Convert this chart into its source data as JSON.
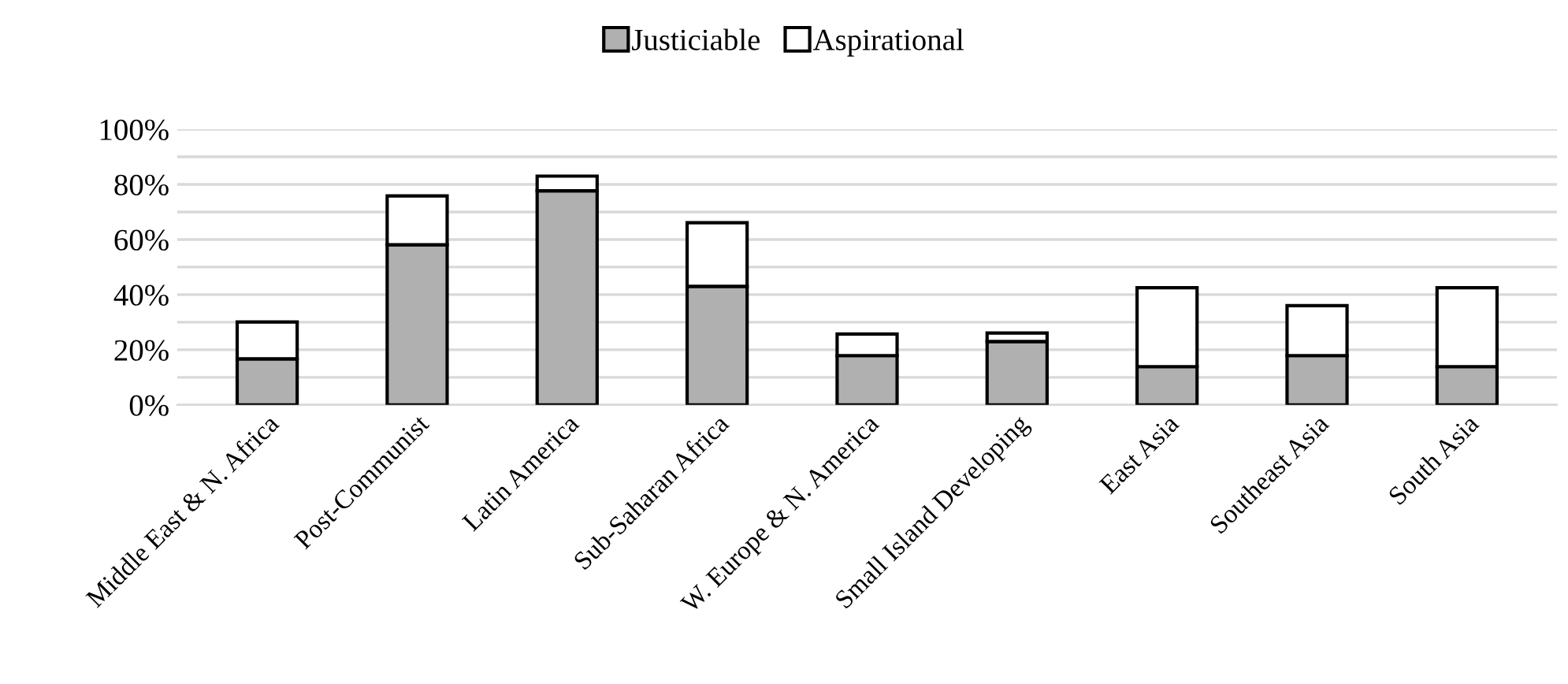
{
  "chart_data": {
    "type": "bar",
    "stacked": true,
    "categories": [
      "Middle East & N. Africa",
      "Post-Communist",
      "Latin America",
      "Sub-Saharan Africa",
      "W. Europe & N. America",
      "Small Island Developing",
      "East Asia",
      "Southeast Asia",
      "South Asia"
    ],
    "series": [
      {
        "name": "Justiciable",
        "color": "#b0b0b0",
        "values": [
          16.7,
          58.1,
          77.7,
          43.0,
          17.9,
          23.0,
          13.9,
          17.9,
          13.9
        ]
      },
      {
        "name": "Aspirational",
        "color": "#ffffff",
        "values": [
          13.4,
          17.7,
          5.3,
          23.1,
          7.8,
          3.1,
          28.6,
          18.1,
          28.6
        ]
      }
    ],
    "ylim": [
      0,
      100
    ],
    "yticks": [
      {
        "value": 0,
        "label": "0%"
      },
      {
        "value": 10,
        "label": null
      },
      {
        "value": 20,
        "label": "20%"
      },
      {
        "value": 30,
        "label": null
      },
      {
        "value": 40,
        "label": "40%"
      },
      {
        "value": 50,
        "label": null
      },
      {
        "value": 60,
        "label": "60%"
      },
      {
        "value": 70,
        "label": null
      },
      {
        "value": 80,
        "label": "80%"
      },
      {
        "value": 90,
        "label": null
      },
      {
        "value": 100,
        "label": "100%"
      }
    ],
    "grid": "y",
    "legend": "top"
  }
}
